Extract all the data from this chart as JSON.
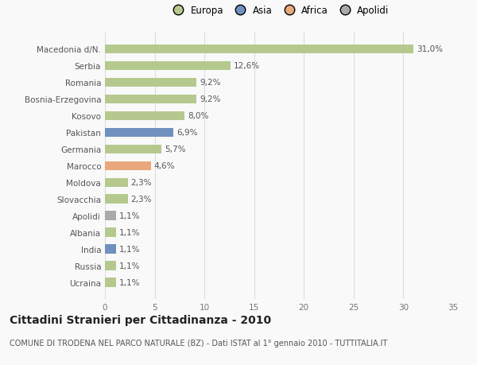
{
  "categories": [
    "Macedonia d/N.",
    "Serbia",
    "Romania",
    "Bosnia-Erzegovina",
    "Kosovo",
    "Pakistan",
    "Germania",
    "Marocco",
    "Moldova",
    "Slovacchia",
    "Apolidi",
    "Albania",
    "India",
    "Russia",
    "Ucraina"
  ],
  "values": [
    31.0,
    12.6,
    9.2,
    9.2,
    8.0,
    6.9,
    5.7,
    4.6,
    2.3,
    2.3,
    1.1,
    1.1,
    1.1,
    1.1,
    1.1
  ],
  "labels": [
    "31,0%",
    "12,6%",
    "9,2%",
    "9,2%",
    "8,0%",
    "6,9%",
    "5,7%",
    "4,6%",
    "2,3%",
    "2,3%",
    "1,1%",
    "1,1%",
    "1,1%",
    "1,1%",
    "1,1%"
  ],
  "colors": [
    "#b5c98e",
    "#b5c98e",
    "#b5c98e",
    "#b5c98e",
    "#b5c98e",
    "#7090c0",
    "#b5c98e",
    "#e8a87c",
    "#b5c98e",
    "#b5c98e",
    "#aaaaaa",
    "#b5c98e",
    "#7090c0",
    "#b5c98e",
    "#b5c98e"
  ],
  "legend": {
    "Europa": "#b5c98e",
    "Asia": "#7090c0",
    "Africa": "#e8a87c",
    "Apolidi": "#aaaaaa"
  },
  "xlim": [
    0,
    35
  ],
  "xticks": [
    0,
    5,
    10,
    15,
    20,
    25,
    30,
    35
  ],
  "title": "Cittadini Stranieri per Cittadinanza - 2010",
  "subtitle": "COMUNE DI TRODENA NEL PARCO NATURALE (BZ) - Dati ISTAT al 1° gennaio 2010 - TUTTITALIA.IT",
  "bg_color": "#f9f9f9",
  "bar_height": 0.55,
  "grid_color": "#dddddd",
  "label_fontsize": 7.5,
  "tick_fontsize": 7.5,
  "title_fontsize": 10,
  "subtitle_fontsize": 7.0
}
